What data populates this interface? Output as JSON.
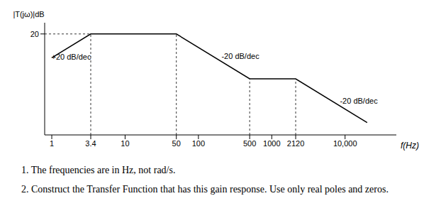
{
  "chart_data": {
    "type": "line",
    "log": "x",
    "grid": false,
    "color": "#000000",
    "line_style": "solid",
    "y_label": "|T(jω)|dB",
    "x_label": "f(Hz)",
    "x": [
      1,
      3.4,
      50,
      500,
      2120,
      20000
    ],
    "values": [
      9.4,
      20,
      20,
      0,
      0,
      -19.5
    ],
    "xlim": [
      0.8,
      50000
    ],
    "ylim": [
      -25,
      25
    ],
    "xticks": [
      1,
      3.4,
      10,
      50,
      100,
      500,
      1000,
      2120,
      {
        "value": 10000,
        "label": "10,000"
      }
    ],
    "yticks": [
      20
    ],
    "annotations": [
      "+20 dB/dec",
      "-20 dB/dec",
      "-20 dB/dec"
    ]
  },
  "notes": [
    "1. The frequencies are in Hz, not rad/s.",
    "2. Construct the Transfer Function that has this gain response. Use only real poles and zeros."
  ]
}
